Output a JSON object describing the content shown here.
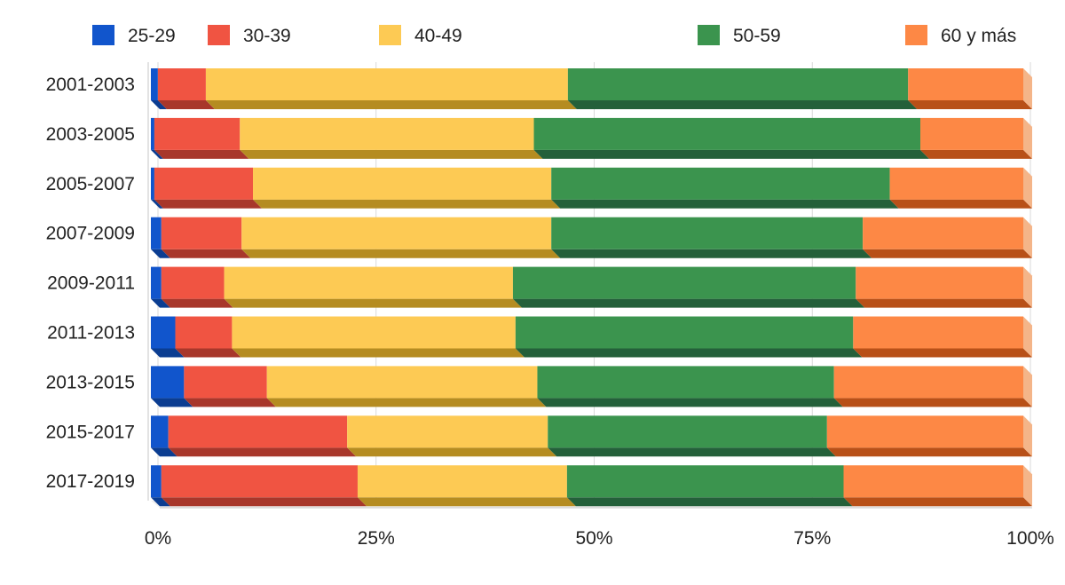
{
  "chart_data": {
    "type": "bar",
    "orientation": "horizontal",
    "stacked": true,
    "percent": true,
    "style": "3d",
    "title": "",
    "xlabel": "",
    "ylabel": "",
    "xlim": [
      0,
      100
    ],
    "grid": true,
    "legend_position": "top",
    "categories": [
      "2001-2003",
      "2003-2005",
      "2005-2007",
      "2007-2009",
      "2009-2011",
      "2011-2013",
      "2013-2015",
      "2015-2017",
      "2017-2019"
    ],
    "x_tick_labels": [
      "0%",
      "25%",
      "50%",
      "75%",
      "100%"
    ],
    "x_tick_values": [
      0,
      25,
      50,
      75,
      100
    ],
    "series": [
      {
        "name": "25-29",
        "color": "#1155cc",
        "side_color": "#0b3d91",
        "values": [
          0.8,
          0.4,
          0.4,
          1.2,
          1.2,
          2.8,
          3.8,
          2.0,
          1.2
        ]
      },
      {
        "name": "30-39",
        "color": "#f05442",
        "side_color": "#a8372b",
        "values": [
          5.5,
          9.8,
          11.3,
          9.2,
          7.2,
          6.5,
          9.5,
          20.5,
          22.5
        ]
      },
      {
        "name": "40-49",
        "color": "#fdca54",
        "side_color": "#b58c21",
        "values": [
          41.5,
          33.7,
          34.2,
          35.5,
          33.1,
          32.5,
          31.0,
          23.0,
          24.0
        ]
      },
      {
        "name": "50-59",
        "color": "#3b944e",
        "side_color": "#24603a",
        "values": [
          39.0,
          44.3,
          38.8,
          35.7,
          39.3,
          38.7,
          34.0,
          32.0,
          31.7
        ]
      },
      {
        "name": "60 y más",
        "color": "#fd8845",
        "side_color": "#b85018",
        "values": [
          13.2,
          11.8,
          15.3,
          18.4,
          19.2,
          19.5,
          21.7,
          22.5,
          20.6
        ]
      }
    ]
  }
}
